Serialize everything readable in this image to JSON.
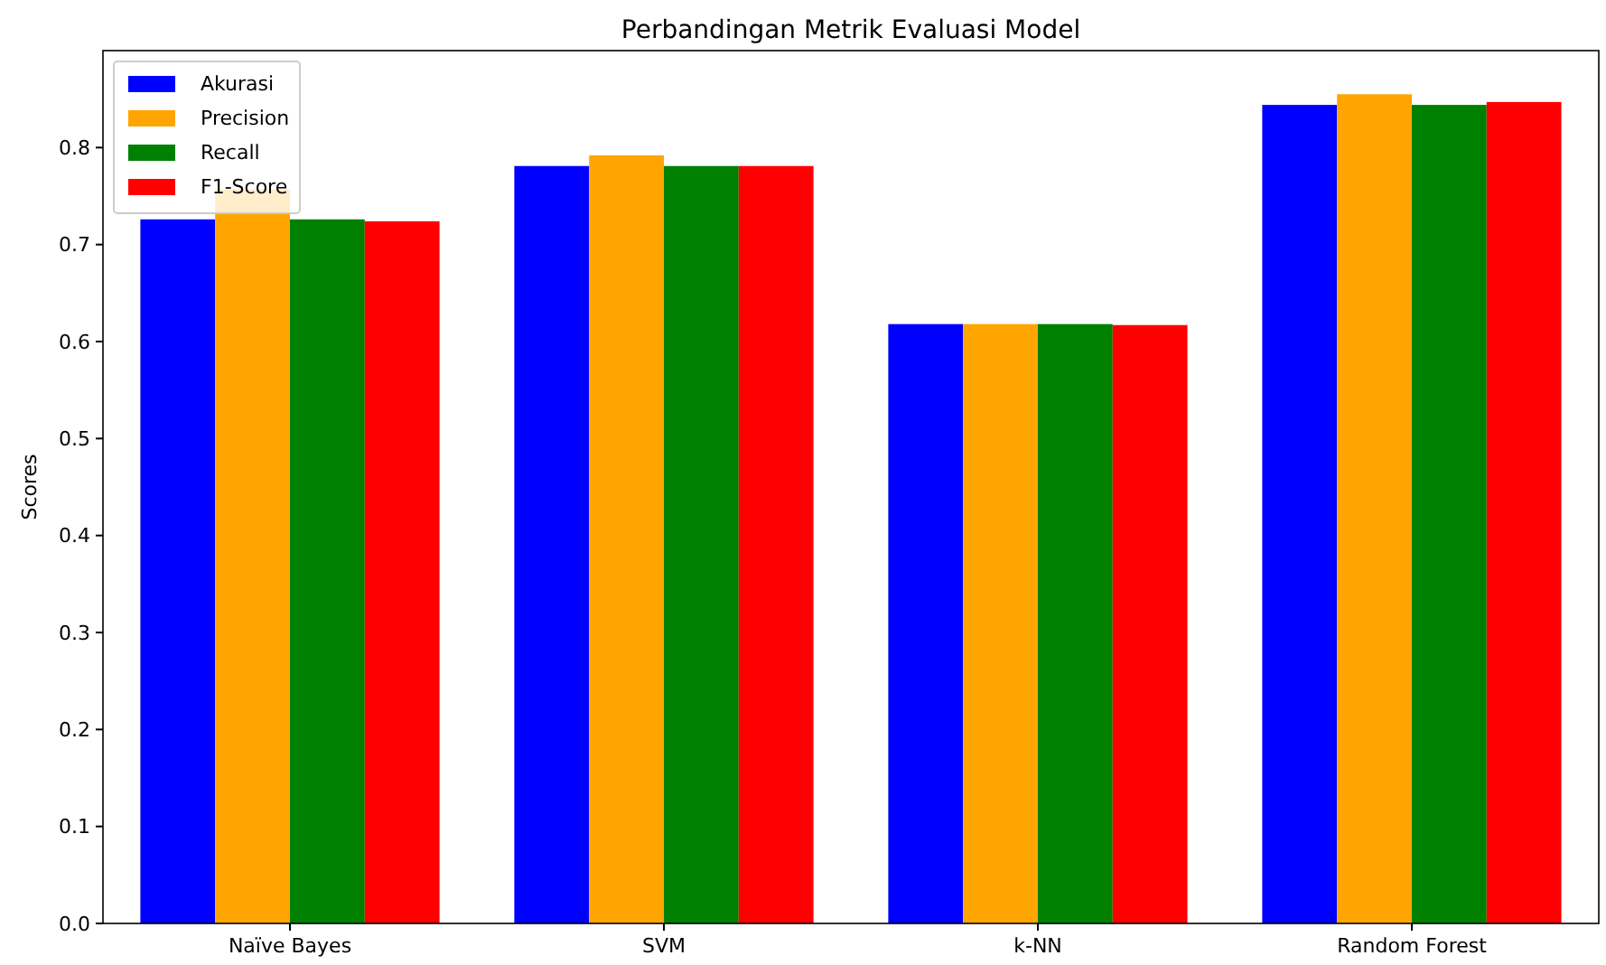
{
  "chart_data": {
    "type": "bar",
    "title": "Perbandingan Metrik Evaluasi Model",
    "ylabel": "Scores",
    "categories": [
      "Naïve Bayes",
      "SVM",
      "k-NN",
      "Random Forest"
    ],
    "series": [
      {
        "name": "Akurasi",
        "color": "#0000ff",
        "values": [
          0.726,
          0.781,
          0.618,
          0.844
        ]
      },
      {
        "name": "Precision",
        "color": "#ffa500",
        "values": [
          0.757,
          0.792,
          0.618,
          0.855
        ]
      },
      {
        "name": "Recall",
        "color": "#008000",
        "values": [
          0.726,
          0.781,
          0.618,
          0.844
        ]
      },
      {
        "name": "F1-Score",
        "color": "#ff0000",
        "values": [
          0.724,
          0.781,
          0.617,
          0.847
        ]
      }
    ],
    "ylim": [
      0,
      0.9
    ],
    "yticks": [
      {
        "value": 0,
        "label": "0.0"
      },
      {
        "value": 0.1,
        "label": "0.1"
      },
      {
        "value": 0.2,
        "label": "0.2"
      },
      {
        "value": 0.3,
        "label": "0.3"
      },
      {
        "value": 0.4,
        "label": "0.4"
      },
      {
        "value": 0.5,
        "label": "0.5"
      },
      {
        "value": 0.6,
        "label": "0.6"
      },
      {
        "value": 0.7,
        "label": "0.7"
      },
      {
        "value": 0.8,
        "label": "0.8"
      }
    ],
    "legend": "top left"
  }
}
